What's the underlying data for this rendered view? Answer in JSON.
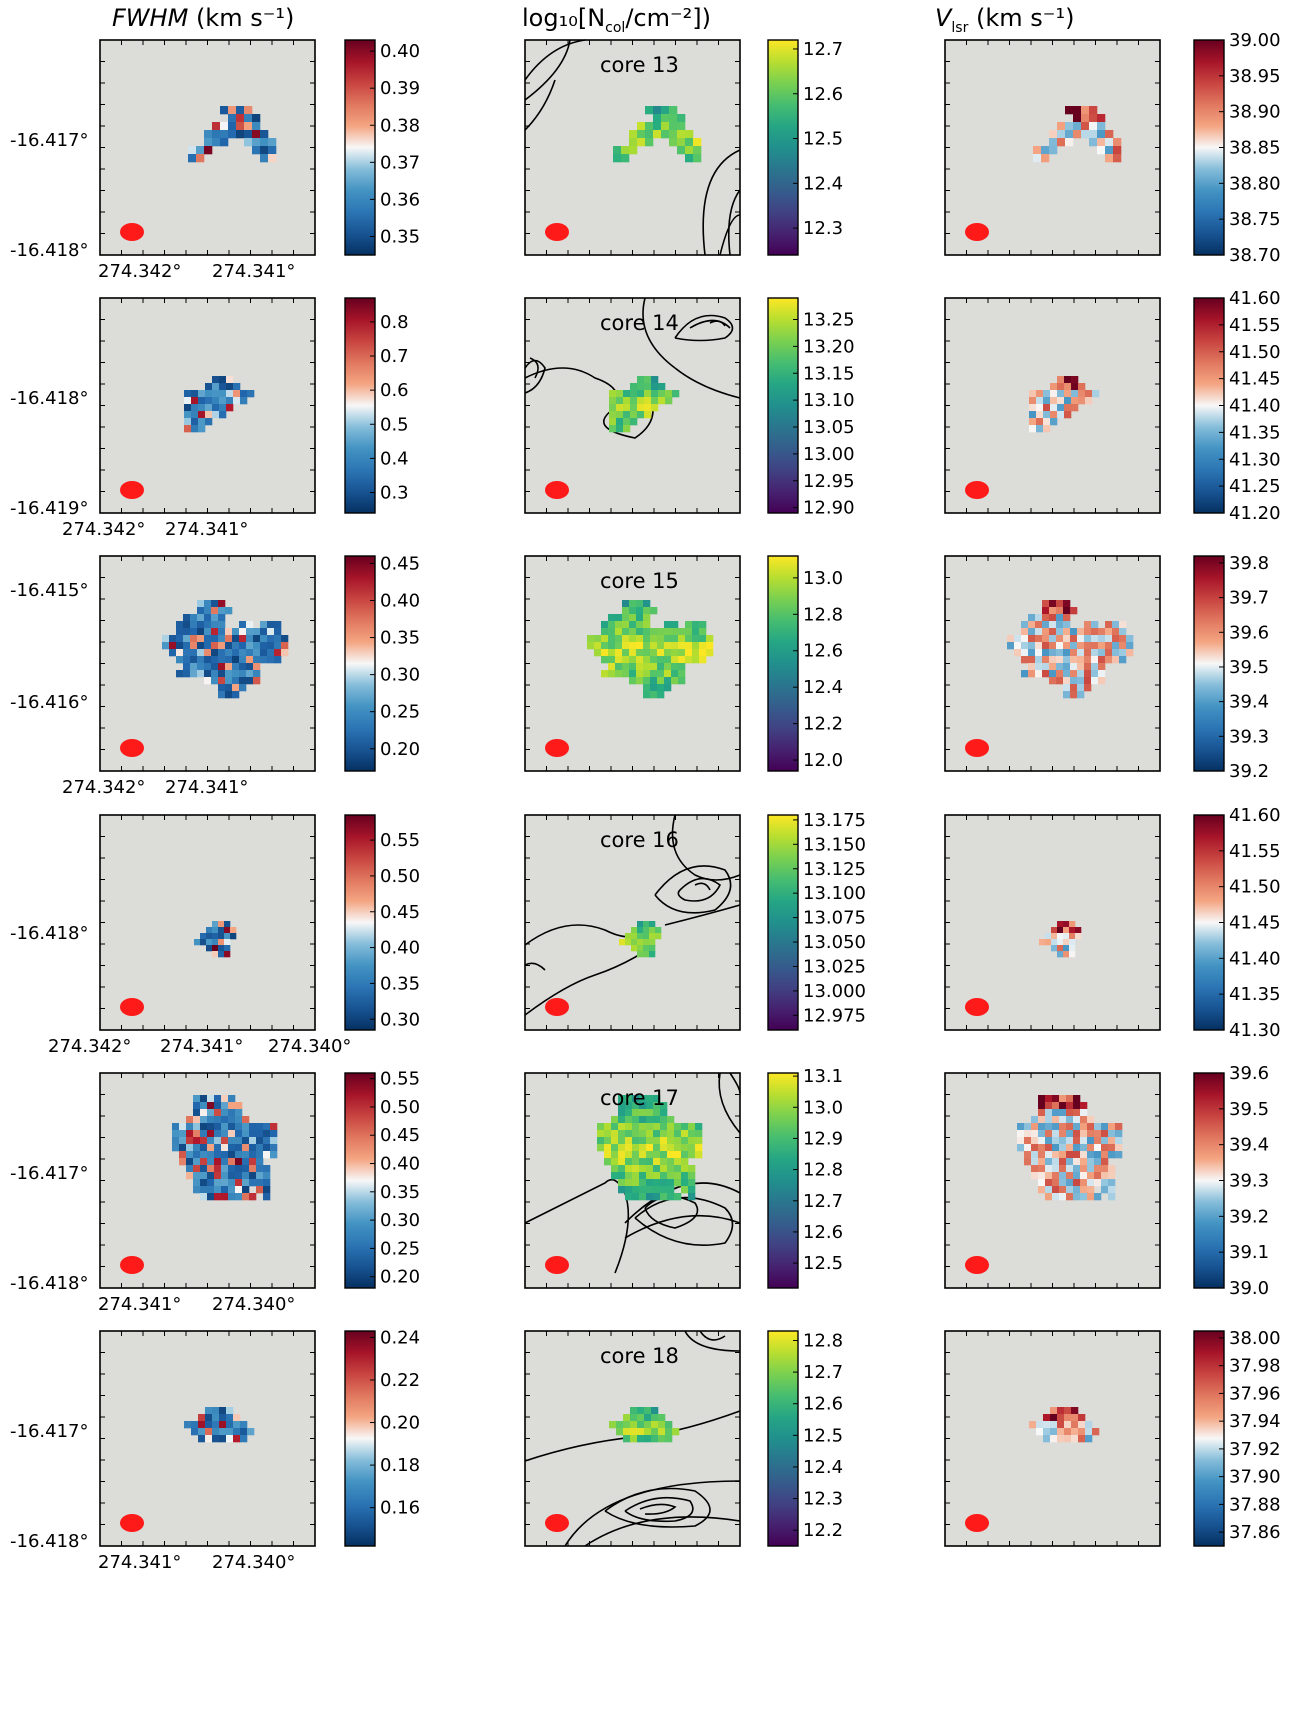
{
  "columns": {
    "fwhm": {
      "title_main": "FWHM",
      "title_unit": "(km s⁻¹)"
    },
    "ncol": {
      "title_main": "log₁₀[N",
      "title_sub": "col",
      "title_unit": "/cm⁻²])"
    },
    "vlsr": {
      "title_main": "V",
      "title_sub": "lsr",
      "title_unit": "(km s⁻¹)"
    }
  },
  "colors": {
    "background_panel": "#dcdcd8",
    "beam": "#ff1a1a",
    "contour": "#000000",
    "cmap_fwhm_vlsr": "RdBu_r",
    "cmap_ncol": "viridis"
  },
  "chart_data": [
    {
      "type": "heatmap",
      "row": 1,
      "core": "core 13",
      "ylabels": [
        "-16.417°",
        "-16.418°"
      ],
      "xlabels": [
        "274.342°",
        "274.341°"
      ],
      "fwhm_cbar": [
        "0.40",
        "0.39",
        "0.38",
        "0.37",
        "0.36",
        "0.35"
      ],
      "fwhm_range": [
        0.345,
        0.403
      ],
      "ncol_cbar": [
        "12.7",
        "12.6",
        "12.5",
        "12.4",
        "12.3"
      ],
      "ncol_range": [
        12.24,
        12.72
      ],
      "vlsr_cbar": [
        "39.00",
        "38.95",
        "38.90",
        "38.85",
        "38.80",
        "38.75",
        "38.70"
      ],
      "vlsr_range": [
        38.7,
        39.0
      ],
      "contours": true
    },
    {
      "type": "heatmap",
      "row": 2,
      "core": "core 14",
      "ylabels": [
        "-16.418°",
        "-16.419°"
      ],
      "xlabels": [
        "274.342°",
        "274.341°"
      ],
      "fwhm_cbar": [
        "0.8",
        "0.7",
        "0.6",
        "0.5",
        "0.4",
        "0.3"
      ],
      "fwhm_range": [
        0.24,
        0.87
      ],
      "ncol_cbar": [
        "13.25",
        "13.20",
        "13.15",
        "13.10",
        "13.05",
        "13.00",
        "12.95",
        "12.90"
      ],
      "ncol_range": [
        12.89,
        13.29
      ],
      "vlsr_cbar": [
        "41.60",
        "41.55",
        "41.50",
        "41.45",
        "41.40",
        "41.35",
        "41.30",
        "41.25",
        "41.20"
      ],
      "vlsr_range": [
        41.2,
        41.6
      ],
      "contours": true
    },
    {
      "type": "heatmap",
      "row": 3,
      "core": "core 15",
      "ylabels": [
        "-16.415°",
        "-16.416°"
      ],
      "xlabels": [
        "274.342°",
        "274.341°"
      ],
      "fwhm_cbar": [
        "0.45",
        "0.40",
        "0.35",
        "0.30",
        "0.25",
        "0.20"
      ],
      "fwhm_range": [
        0.17,
        0.46
      ],
      "ncol_cbar": [
        "13.0",
        "12.8",
        "12.6",
        "12.4",
        "12.2",
        "12.0"
      ],
      "ncol_range": [
        11.94,
        13.12
      ],
      "vlsr_cbar": [
        "39.8",
        "39.7",
        "39.6",
        "39.5",
        "39.4",
        "39.3",
        "39.2"
      ],
      "vlsr_range": [
        39.2,
        39.82
      ],
      "contours": false
    },
    {
      "type": "heatmap",
      "row": 4,
      "core": "core 16",
      "ylabels": [
        "-16.418°"
      ],
      "xlabels": [
        "274.342°",
        "274.341°",
        "274.340°"
      ],
      "fwhm_cbar": [
        "0.55",
        "0.50",
        "0.45",
        "0.40",
        "0.35",
        "0.30"
      ],
      "fwhm_range": [
        0.285,
        0.585
      ],
      "ncol_cbar": [
        "13.175",
        "13.150",
        "13.125",
        "13.100",
        "13.075",
        "13.050",
        "13.025",
        "13.000",
        "12.975"
      ],
      "ncol_range": [
        12.96,
        13.18
      ],
      "vlsr_cbar": [
        "41.60",
        "41.55",
        "41.50",
        "41.45",
        "41.40",
        "41.35",
        "41.30"
      ],
      "vlsr_range": [
        41.3,
        41.6
      ],
      "contours": true
    },
    {
      "type": "heatmap",
      "row": 5,
      "core": "core 17",
      "ylabels": [
        "-16.417°",
        "-16.418°"
      ],
      "xlabels": [
        "274.341°",
        "274.340°"
      ],
      "fwhm_cbar": [
        "0.55",
        "0.50",
        "0.45",
        "0.40",
        "0.35",
        "0.30",
        "0.25",
        "0.20"
      ],
      "fwhm_range": [
        0.18,
        0.56
      ],
      "ncol_cbar": [
        "13.1",
        "13.0",
        "12.9",
        "12.8",
        "12.7",
        "12.6",
        "12.5"
      ],
      "ncol_range": [
        12.42,
        13.11
      ],
      "vlsr_cbar": [
        "39.6",
        "39.5",
        "39.4",
        "39.3",
        "39.2",
        "39.1",
        "39.0"
      ],
      "vlsr_range": [
        39.0,
        39.6
      ],
      "contours": true
    },
    {
      "type": "heatmap",
      "row": 6,
      "core": "core 18",
      "ylabels": [
        "-16.417°",
        "-16.418°"
      ],
      "xlabels": [
        "274.341°",
        "274.340°"
      ],
      "fwhm_cbar": [
        "0.24",
        "0.22",
        "0.20",
        "0.18",
        "0.16"
      ],
      "fwhm_range": [
        0.142,
        0.243
      ],
      "ncol_cbar": [
        "12.8",
        "12.7",
        "12.6",
        "12.5",
        "12.4",
        "12.3",
        "12.2"
      ],
      "ncol_range": [
        12.15,
        12.83
      ],
      "vlsr_cbar": [
        "38.00",
        "37.98",
        "37.96",
        "37.94",
        "37.92",
        "37.90",
        "37.88",
        "37.86"
      ],
      "vlsr_range": [
        37.85,
        38.005
      ],
      "contours": true
    }
  ]
}
